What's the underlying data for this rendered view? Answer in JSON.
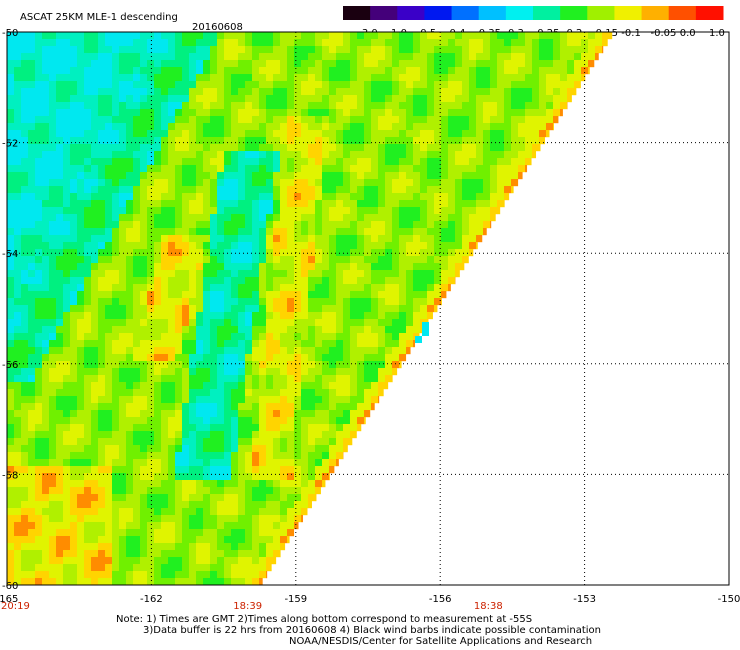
{
  "header": {
    "title": "ASCAT 25KM MLE-1 descending",
    "date": "20160608"
  },
  "colorbar": {
    "labels": [
      "-3.0",
      "-1.0",
      "-0.5",
      "-0.4",
      "-0.35",
      "-0.3",
      "-0.25",
      "-0.2",
      "-0.15",
      "-0.1",
      "-0.05",
      "0.0",
      "1.0"
    ],
    "colors": [
      "#1a0010",
      "#44007a",
      "#3a00c8",
      "#0018f0",
      "#0070ff",
      "#00c0ff",
      "#00f0f0",
      "#00f0a0",
      "#20f020",
      "#a0f000",
      "#f0f000",
      "#ffb000",
      "#ff5000",
      "#ff1000"
    ]
  },
  "map": {
    "lon_range": [
      -165,
      -150
    ],
    "lat_range": [
      -60,
      -50
    ],
    "lon_ticks": [
      "-165",
      "-162",
      "-159",
      "-156",
      "-153",
      "-150"
    ],
    "lat_ticks": [
      "-50",
      "-52",
      "-54",
      "-56",
      "-58",
      "-60"
    ],
    "times": [
      {
        "lon": -165,
        "label": "20:19"
      },
      {
        "lon": -160,
        "label": "18:39"
      },
      {
        "lon": -155,
        "label": "18:38"
      }
    ]
  },
  "notes": {
    "line1": "Note: 1) Times are GMT 2)Times along bottom correspond to measurement at -55S",
    "line2": "3)Data buffer is 22 hrs from 20160608 4) Black wind barbs indicate possible contamination",
    "line3": "NOAA/NESDIS/Center for Satellite Applications and Research"
  }
}
